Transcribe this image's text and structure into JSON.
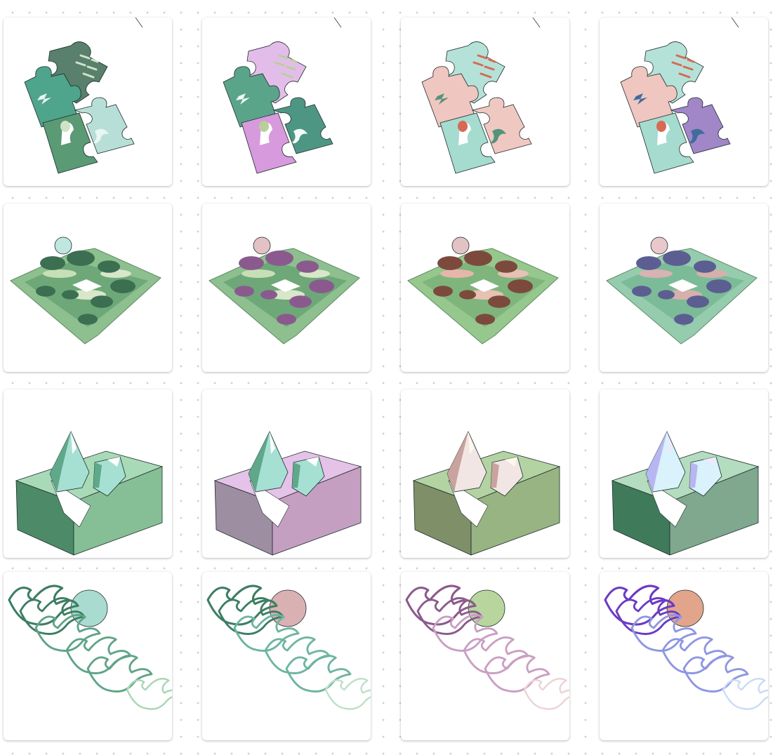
{
  "board": {
    "rows": [
      {
        "subject": "puzzle",
        "cards": [
          {
            "variant": "green",
            "palette": {
              "p1": "#4fa48c",
              "p2": "#5a9a74",
              "p3": "#b8dfd7",
              "p4": "#58806c",
              "dot": "#cfe3c5",
              "glyph": "#e9f6f1"
            }
          },
          {
            "variant": "green-pink",
            "palette": {
              "p1": "#5aa48a",
              "p2": "#d79adc",
              "p3": "#4e9684",
              "p4": "#e3bde9",
              "dot": "#b9cf9a",
              "glyph": "#f4fbf8"
            }
          },
          {
            "variant": "pink-mint",
            "palette": {
              "p1": "#f0c6c0",
              "p2": "#a6dbcf",
              "p3": "#f0c8c2",
              "p4": "#b5e2d8",
              "dot": "#d66a55",
              "glyph": "#52947a"
            }
          },
          {
            "variant": "pink-mint-violet",
            "palette": {
              "p1": "#f0c6c0",
              "p2": "#a6dbcf",
              "p3": "#a186c8",
              "p4": "#b5e2d8",
              "dot": "#d66a55",
              "glyph": "#3f6c9c"
            }
          }
        ]
      },
      {
        "subject": "island",
        "cards": [
          {
            "variant": "green",
            "palette": {
              "ground": "#8dbf8f",
              "ground2": "#6ea878",
              "light": "#c7dfb7",
              "bush": "#3c6e52",
              "sun": "#bfe6df",
              "path": "#d8e6c9"
            }
          },
          {
            "variant": "green-purple",
            "palette": {
              "ground": "#8dbf8f",
              "ground2": "#6ea878",
              "light": "#c7dfb7",
              "bush": "#8a5a8e",
              "sun": "#e2c2c4",
              "path": "#d8e6c9"
            }
          },
          {
            "variant": "green-brown",
            "palette": {
              "ground": "#96c78c",
              "ground2": "#7fb57d",
              "light": "#e7b6ab",
              "bush": "#7c4a3c",
              "sun": "#e2c2c4",
              "path": "#e6c1b4"
            }
          },
          {
            "variant": "green-violet",
            "palette": {
              "ground": "#96ccae",
              "ground2": "#7cbb98",
              "light": "#d7b3b3",
              "bush": "#5c5e92",
              "sun": "#e9c8cb",
              "path": "#d5b0ac"
            }
          }
        ]
      },
      {
        "subject": "crystal-block",
        "cards": [
          {
            "variant": "green",
            "palette": {
              "top": "#a9dab8",
              "left": "#4d8a68",
              "right": "#86bf96",
              "crystal": "#a6e0d2",
              "crystal2": "#5fa88a",
              "accent": "#ffffff"
            }
          },
          {
            "variant": "pink-purple",
            "palette": {
              "top": "#e5c2e8",
              "left": "#9d8ea2",
              "right": "#c59fc2",
              "crystal": "#a6e0d2",
              "crystal2": "#5fa88a",
              "accent": "#ffffff"
            }
          },
          {
            "variant": "olive-cream",
            "palette": {
              "top": "#b3d3a3",
              "left": "#7f8f68",
              "right": "#98b482",
              "crystal": "#f2e6e4",
              "crystal2": "#c9a39e",
              "accent": "#fff8ec"
            }
          },
          {
            "variant": "green-lilac",
            "palette": {
              "top": "#b4dcbf",
              "left": "#3f7b5b",
              "right": "#7fa88f",
              "crystal": "#d9f2fb",
              "crystal2": "#b8b6f1",
              "accent": "#eee9ff"
            }
          }
        ]
      },
      {
        "subject": "birds",
        "cards": [
          {
            "variant": "green",
            "palette": {
              "dark": "#3d7e63",
              "mid": "#5fa487",
              "light": "#a9d6b4",
              "sun": "#aadbd0"
            }
          },
          {
            "variant": "teal-rose",
            "palette": {
              "dark": "#3d7e63",
              "mid": "#6db5a1",
              "light": "#bfe0c8",
              "sun": "#d9b1b3"
            }
          },
          {
            "variant": "mauve-pink",
            "palette": {
              "dark": "#8b5a8c",
              "mid": "#c99fc3",
              "light": "#ecd3d6",
              "sun": "#b8d59e"
            }
          },
          {
            "variant": "violet-blue",
            "palette": {
              "dark": "#6a3bc4",
              "mid": "#8e96e2",
              "light": "#c9dcf6",
              "sun": "#e2a58c"
            }
          }
        ]
      }
    ]
  }
}
